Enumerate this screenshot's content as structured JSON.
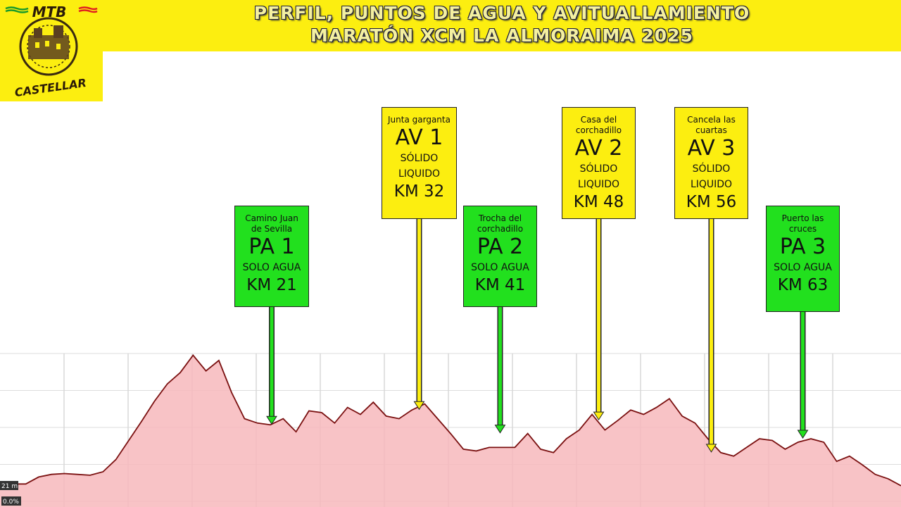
{
  "header": {
    "title_line1": "PERFIL, PUNTOS DE AGUA Y AVITUALLAMIENTO",
    "title_line2": "MARATÓN XCM LA ALMORAIMA 2025",
    "logo_top": "MTB",
    "logo_bottom": "CASTELLAR"
  },
  "colors": {
    "banner": "#fcee10",
    "water_point": "#22e01e",
    "feed_point": "#fcee10",
    "profile_line": "#7a1010",
    "profile_fill": "#f7b8bc"
  },
  "axis_labels": {
    "elevation": "21 m",
    "grade": "0.0%"
  },
  "points": [
    {
      "place": "Camino Juan de Sevilla",
      "code": "PA 1",
      "lines": [
        "SOLO AGUA"
      ],
      "km": "KM 21",
      "type": "water"
    },
    {
      "place": "Junta garganta",
      "code": "AV 1",
      "lines": [
        "SÓLIDO",
        "LIQUIDO"
      ],
      "km": "KM 32",
      "type": "feed"
    },
    {
      "place": "Trocha del corchadillo",
      "code": "PA 2",
      "lines": [
        "SOLO AGUA"
      ],
      "km": "KM 41",
      "type": "water"
    },
    {
      "place": "Casa del corchadillo",
      "code": "AV 2",
      "lines": [
        "SÓLIDO",
        "LIQUIDO"
      ],
      "km": "KM 48",
      "type": "feed"
    },
    {
      "place": "Cancela las cuartas",
      "code": "AV 3",
      "lines": [
        "SÓLIDO",
        "LIQUIDO"
      ],
      "km": "KM 56",
      "type": "feed"
    },
    {
      "place": "Puerto las cruces",
      "code": "PA 3",
      "lines": [
        "SOLO AGUA"
      ],
      "km": "KM 63",
      "type": "water"
    }
  ],
  "chart_data": {
    "type": "area",
    "x": [
      0,
      1,
      2,
      3,
      4,
      5,
      6,
      7,
      8,
      9,
      10,
      11,
      12,
      13,
      14,
      15,
      16,
      17,
      18,
      19,
      20,
      21,
      22,
      23,
      24,
      25,
      26,
      27,
      28,
      29,
      30,
      31,
      32,
      33,
      34,
      35,
      36,
      37,
      38,
      39,
      40,
      41,
      42,
      43,
      44,
      45,
      46,
      47,
      48,
      49,
      50,
      51,
      52,
      53,
      54,
      55,
      56,
      57,
      58,
      59,
      60,
      61,
      62,
      63,
      64,
      65,
      66,
      67,
      68,
      69,
      70
    ],
    "values": [
      21,
      20,
      20,
      28,
      31,
      32,
      31,
      30,
      34,
      48,
      70,
      92,
      115,
      135,
      148,
      168,
      150,
      162,
      125,
      95,
      90,
      88,
      95,
      80,
      104,
      102,
      90,
      108,
      100,
      114,
      98,
      95,
      105,
      112,
      95,
      78,
      60,
      58,
      62,
      62,
      62,
      78,
      60,
      56,
      72,
      82,
      100,
      82,
      93,
      105,
      100,
      108,
      118,
      98,
      90,
      72,
      56,
      52,
      62,
      72,
      70,
      60,
      68,
      72,
      68,
      46,
      52,
      42,
      31,
      26,
      18
    ]
  },
  "xkm": [
    0,
    1,
    2,
    3,
    4,
    5,
    6,
    7,
    8,
    9,
    10,
    11,
    12,
    13,
    14,
    15,
    16,
    17,
    18,
    19,
    20,
    21,
    22,
    23,
    24,
    25,
    26,
    27,
    28,
    29,
    30,
    31,
    32,
    33,
    34,
    35,
    36,
    37,
    38,
    39,
    40,
    41,
    42,
    43,
    44,
    45,
    46,
    47,
    48,
    49,
    50,
    51,
    52,
    53,
    54,
    55,
    56,
    57,
    58,
    59,
    60,
    61,
    62,
    63,
    64,
    65,
    66,
    67,
    68,
    69,
    70
  ]
}
